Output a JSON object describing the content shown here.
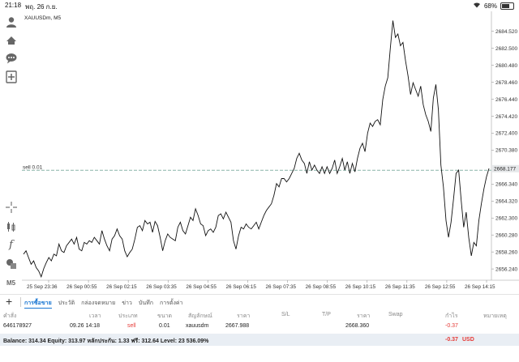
{
  "status_bar": {
    "time": "21:18",
    "date": "พฤ. 26 ก.ย.",
    "battery": "68%",
    "battery_level": 0.68
  },
  "toolbar": {
    "tools": [
      {
        "icon": "person-icon"
      },
      {
        "icon": "trade-icon"
      },
      {
        "icon": "chat-icon"
      },
      {
        "icon": "add-document-icon"
      },
      {
        "icon": "crosshair-icon"
      },
      {
        "icon": "indicators-icon"
      },
      {
        "icon": "function-icon"
      },
      {
        "icon": "objects-icon"
      },
      {
        "icon": "timeframe-icon",
        "label": "M5"
      }
    ]
  },
  "chart": {
    "symbol_label": "XAUUSDm, M5",
    "order_line_label": "sell 0.01",
    "current_price_label": "2668.177",
    "colors": {
      "line": "#111111",
      "order_line": "#8ab4a8",
      "price_tag": "#e6e8ea"
    }
  },
  "chart_data": {
    "type": "line",
    "title": "XAUUSDm, M5",
    "x_tick_labels": [
      "25 Sep 23:36",
      "26 Sep 00:55",
      "26 Sep 02:15",
      "26 Sep 03:35",
      "26 Sep 04:55",
      "26 Sep 06:15",
      "26 Sep 07:35",
      "26 Sep 08:55",
      "26 Sep 10:15",
      "26 Sep 11:35",
      "26 Sep 12:55",
      "26 Sep 14:15"
    ],
    "y_tick_labels": [
      "2684.520",
      "2682.500",
      "2680.480",
      "2678.460",
      "2676.440",
      "2674.420",
      "2672.400",
      "2670.380",
      "2668.360",
      "2666.340",
      "2664.320",
      "2662.300",
      "2660.280",
      "2658.260",
      "2656.240"
    ],
    "ylim": [
      2654.9,
      2686.9
    ],
    "order_price": 2667.988,
    "current_price": 2668.177,
    "values": [
      2658.0,
      2658.4,
      2657.6,
      2656.8,
      2657.2,
      2656.4,
      2656.0,
      2655.3,
      2656.3,
      2657.0,
      2657.6,
      2657.2,
      2658.0,
      2657.8,
      2659.2,
      2658.4,
      2658.2,
      2659.0,
      2659.4,
      2659.8,
      2659.2,
      2660.0,
      2658.6,
      2658.4,
      2659.4,
      2659.2,
      2659.6,
      2659.4,
      2660.0,
      2659.6,
      2659.2,
      2660.8,
      2659.8,
      2659.0,
      2658.4,
      2659.8,
      2660.2,
      2661.0,
      2660.2,
      2659.8,
      2658.4,
      2657.7,
      2658.2,
      2658.6,
      2659.8,
      2661.2,
      2661.4,
      2660.8,
      2662.0,
      2661.6,
      2661.8,
      2660.6,
      2661.9,
      2661.4,
      2660.0,
      2658.4,
      2659.6,
      2660.4,
      2660.0,
      2659.8,
      2659.6,
      2661.2,
      2661.8,
      2660.8,
      2660.4,
      2661.4,
      2662.4,
      2662.0,
      2663.4,
      2662.6,
      2661.6,
      2661.4,
      2660.2,
      2660.8,
      2661.0,
      2660.6,
      2661.2,
      2662.6,
      2662.8,
      2662.2,
      2663.0,
      2662.4,
      2661.8,
      2659.6,
      2658.6,
      2660.2,
      2661.2,
      2661.0,
      2661.6,
      2661.2,
      2661.0,
      2661.4,
      2661.8,
      2661.0,
      2661.8,
      2662.6,
      2663.2,
      2663.6,
      2664.0,
      2665.0,
      2666.4,
      2666.0,
      2667.0,
      2667.0,
      2666.6,
      2667.0,
      2667.6,
      2668.2,
      2669.4,
      2670.0,
      2669.2,
      2668.8,
      2667.6,
      2669.0,
      2668.0,
      2668.6,
      2668.0,
      2667.6,
      2668.4,
      2667.6,
      2668.4,
      2667.6,
      2668.2,
      2669.2,
      2667.6,
      2668.4,
      2669.4,
      2668.0,
      2669.0,
      2667.6,
      2668.8,
      2667.8,
      2669.4,
      2670.6,
      2671.2,
      2670.2,
      2672.4,
      2673.6,
      2673.2,
      2673.8,
      2674.0,
      2673.4,
      2676.4,
      2678.0,
      2679.0,
      2682.5,
      2685.8,
      2683.8,
      2684.2,
      2682.8,
      2683.2,
      2681.0,
      2679.2,
      2677.0,
      2678.4,
      2677.6,
      2676.8,
      2678.0,
      2675.8,
      2674.6,
      2673.8,
      2672.6,
      2676.6,
      2678.2,
      2675.2,
      2668.6,
      2666.0,
      2662.0,
      2660.0,
      2661.8,
      2664.6,
      2667.6,
      2668.0,
      2664.4,
      2661.2,
      2663.0,
      2660.0,
      2657.8,
      2659.4,
      2659.0,
      2662.0,
      2664.0,
      2665.8,
      2667.2,
      2668.2
    ]
  },
  "terminal": {
    "tabs": [
      "การซื้อขาย",
      "ประวัติ",
      "กล่องจดหมาย",
      "ข่าว",
      "บันทึก",
      "การตั้งค่า"
    ],
    "active_tab": 0,
    "columns": [
      "คำสั่ง",
      "เวลา",
      "ประเภท",
      "ขนาด",
      "สัญลักษณ์",
      "ราคา",
      "S/L",
      "T/P",
      "ราคา",
      "Swap",
      "กำไร",
      "หมายเหตุ"
    ],
    "rows": [
      [
        "646178927",
        "09.26 14:18",
        "sell",
        "0.01",
        "xauusdm",
        "2667.988",
        "",
        "",
        "2668.360",
        "",
        "-0.37",
        ""
      ]
    ],
    "balance_text": "Balance: 314.34 Equity: 313.97 หลักประกัน: 1.33 ฟรี: 312.64 Level: 23 536.09%",
    "total_profit": "-0.37",
    "currency": "USD"
  }
}
